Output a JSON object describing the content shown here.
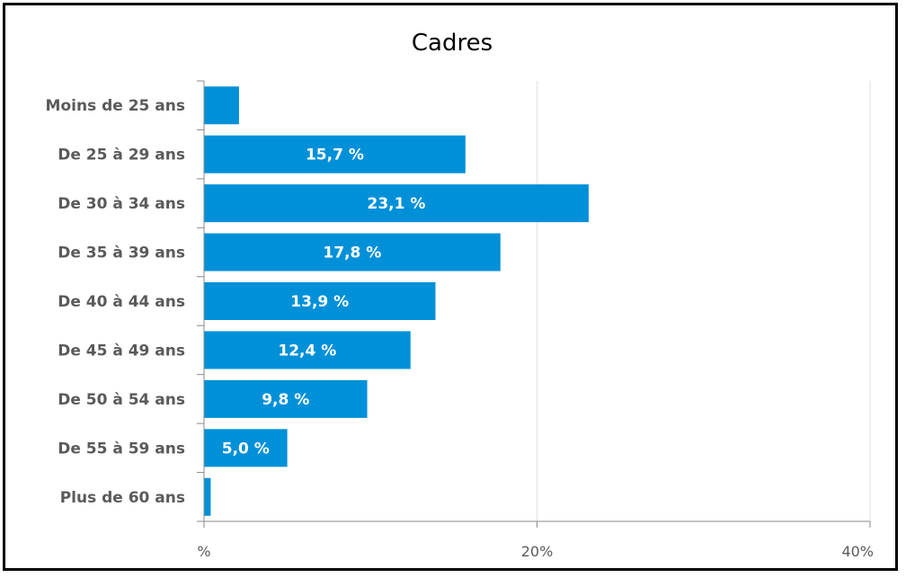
{
  "chart_data": {
    "type": "bar",
    "orientation": "horizontal",
    "title": "Cadres",
    "xlabel": "",
    "ylabel": "",
    "xlim": [
      0,
      40
    ],
    "x_ticks": [
      0,
      20,
      40
    ],
    "x_tick_labels": [
      "%",
      "20%",
      "40%"
    ],
    "grid": true,
    "legend": "none",
    "bar_color": "#0090d8",
    "categories": [
      "Moins de 25 ans",
      "De 25 à 29 ans",
      "De 30 à 34 ans",
      "De 35 à 39 ans",
      "De 40 à 44 ans",
      "De 45 à 49 ans",
      "De 50 à 54 ans",
      "De 55 à 59 ans",
      "Plus de 60 ans"
    ],
    "values": [
      2.1,
      15.7,
      23.1,
      17.8,
      13.9,
      12.4,
      9.8,
      5.0,
      0.4
    ],
    "data_labels": [
      "",
      "15,7 %",
      "23,1 %",
      "17,8 %",
      "13,9 %",
      "12,4 %",
      "9,8 %",
      "5,0 %",
      ""
    ]
  }
}
